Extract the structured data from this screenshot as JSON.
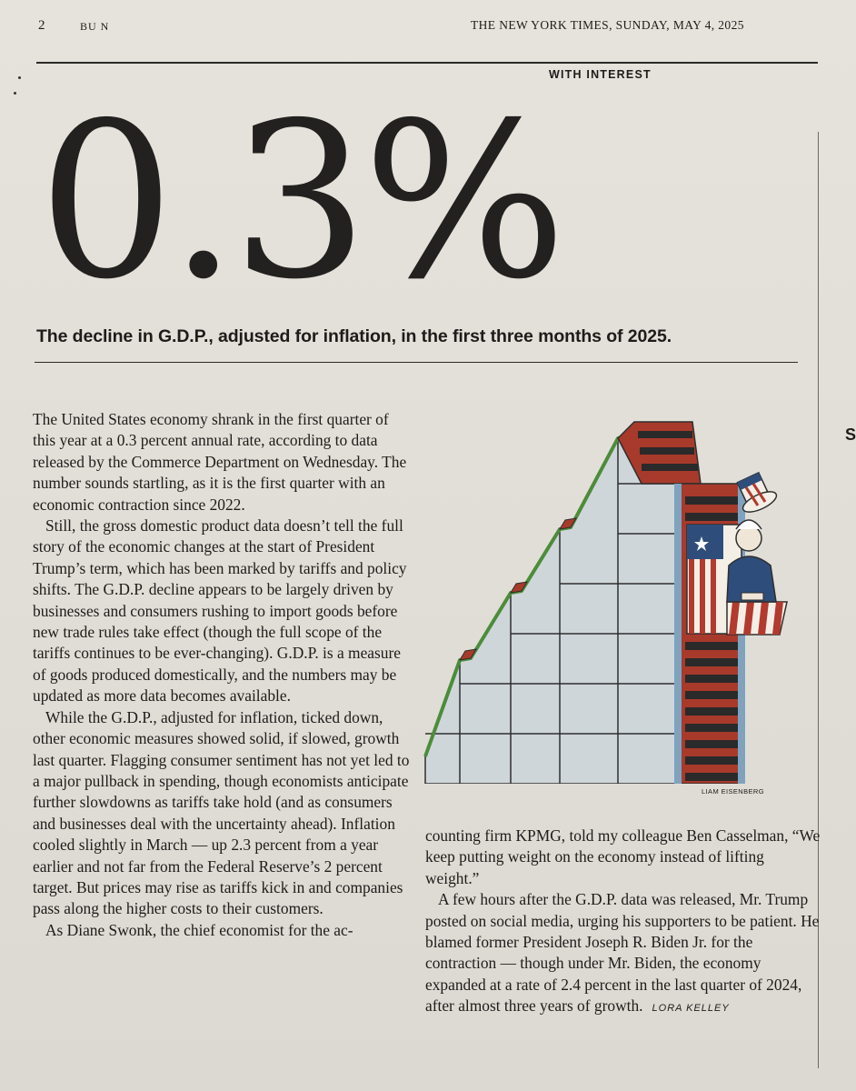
{
  "header": {
    "page_number": "2",
    "section": "BU N",
    "date_line": "THE NEW YORK TIMES, SUNDAY, MAY 4, 2025"
  },
  "kicker": "WITH INTEREST",
  "headline_number": "0.3%",
  "subhead": "The decline in G.D.P., adjusted for inflation, in the first three months of 2025.",
  "art_credit": "LIAM EISENBERG",
  "margin_letter": "S",
  "column1": {
    "p1": "The United States economy shrank in the first quarter of this year at a 0.3 percent annual rate, according to data released by the Commerce Department on Wednesday. The number sounds startling, as it is the first quarter with an economic contraction since 2022.",
    "p2": "Still, the gross domestic product data doesn’t tell the full story of the economic changes at the start of President Trump’s term, which has been marked by tariffs and policy shifts. The G.D.P. decline appears to be largely driven by businesses and consumers rushing to import goods before new trade rules take effect (though the full scope of the tariffs continues to be ever-changing). G.D.P. is a measure of goods produced domestically, and the numbers may be updated as more data becomes available.",
    "p3": "While the G.D.P., adjusted for inflation, ticked down, other economic measures showed solid, if slowed, growth last quarter. Flagging consumer sentiment has not yet led to a major pullback in spending, though economists anticipate further slowdowns as tariffs take hold (and as consumers and businesses deal with the uncertainty ahead). Inflation cooled slightly in March — up 2.3 percent from a year earlier and not far from the Federal Reserve’s 2 percent target. But prices may rise as tariffs kick in and companies pass along the higher costs to their customers.",
    "p4": "As Diane Swonk, the chief economist for the ac-"
  },
  "column2": {
    "p1": "counting firm KPMG, told my colleague Ben Casselman, “We keep putting weight on the economy instead of lifting weight.”",
    "p2": "A few hours after the G.D.P. data was released, Mr. Trump posted on social media, urging his supporters to be patient. He blamed former President Joseph R. Biden Jr. for the contraction — though under Mr. Biden, the economy expanded at a rate of 2.4 percent in the last quarter of 2024, after almost three years of growth.",
    "byline": "LORA KELLEY"
  }
}
